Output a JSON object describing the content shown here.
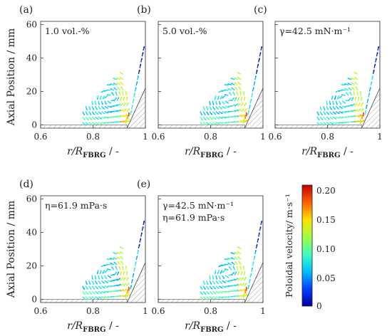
{
  "figure": {
    "y_axis_label": "Axial Position / mm",
    "x_axis_label_base": "r/R",
    "x_axis_label_sub": "FBRG",
    "x_axis_label_unit": " / -",
    "colorbar_label": "Poloidal velocity/ m·s⁻¹",
    "colorbar_ticks": [
      "0.20",
      "0.15",
      "0.10",
      "0.05",
      "0"
    ],
    "colormap": [
      "#0000a0",
      "#0040ff",
      "#00c0ff",
      "#40ffc0",
      "#a0ff40",
      "#ffe000",
      "#ff6000",
      "#c00000"
    ]
  },
  "chart_data": [
    {
      "type": "scatter",
      "panel": "(a)",
      "annotation": [
        "1.0 vol.-%"
      ],
      "xlim": [
        0.6,
        1.0
      ],
      "ylim": [
        -2,
        62
      ],
      "x_ticks": [
        "0.6",
        "0.8",
        "1"
      ],
      "y_ticks": [
        "0",
        "20",
        "40",
        "60"
      ],
      "velocity_range": [
        0,
        0.2
      ]
    },
    {
      "type": "scatter",
      "panel": "(b)",
      "annotation": [
        "5.0 vol.-%"
      ],
      "xlim": [
        0.6,
        1.0
      ],
      "ylim": [
        -2,
        62
      ],
      "x_ticks": [
        "0.6",
        "0.8",
        "1"
      ],
      "y_ticks": [],
      "velocity_range": [
        0,
        0.2
      ]
    },
    {
      "type": "scatter",
      "panel": "(c)",
      "annotation": [
        "γ=42.5 mN·m⁻¹"
      ],
      "xlim": [
        0.6,
        1.0
      ],
      "ylim": [
        -2,
        62
      ],
      "x_ticks": [
        "0.6",
        "0.8",
        "1"
      ],
      "y_ticks": [],
      "velocity_range": [
        0,
        0.2
      ]
    },
    {
      "type": "scatter",
      "panel": "(d)",
      "annotation": [
        "η=61.9 mPa·s"
      ],
      "xlim": [
        0.6,
        1.0
      ],
      "ylim": [
        -2,
        62
      ],
      "x_ticks": [
        "0.6",
        "0.8",
        "1"
      ],
      "y_ticks": [
        "0",
        "20",
        "40",
        "60"
      ],
      "velocity_range": [
        0,
        0.2
      ]
    },
    {
      "type": "scatter",
      "panel": "(e)",
      "annotation": [
        "γ=42.5 mN·m⁻¹",
        "η=61.9 mPa·s"
      ],
      "xlim": [
        0.6,
        1.0
      ],
      "ylim": [
        -2,
        62
      ],
      "x_ticks": [
        "0.6",
        "0.8",
        "1"
      ],
      "y_ticks": [],
      "velocity_range": [
        0,
        0.2
      ]
    }
  ]
}
